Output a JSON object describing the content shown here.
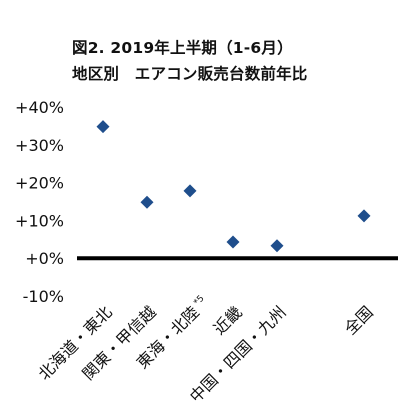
{
  "chart_data": {
    "type": "scatter",
    "title": "図2. 2019年上半期（1-6月）",
    "subtitle": "地区別　エアコン販売台数前年比",
    "categories": [
      "北海道・東北",
      "関東・甲信越",
      "東海・北陸",
      "近畿",
      "中国・四国・九州",
      "全国"
    ],
    "category_notes": [
      "",
      "",
      "*5",
      "",
      "",
      ""
    ],
    "values": [
      34.8,
      14.8,
      17.8,
      4.3,
      3.3,
      11.2
    ],
    "value_unit": "%",
    "y_ticks": [
      "+40%",
      "+30%",
      "+20%",
      "+10%",
      "+0%",
      "-10%"
    ],
    "ylim": [
      -10,
      40
    ],
    "grid": false,
    "legend": "none",
    "marker": "diamond",
    "colors": {
      "marker": "#1f4e8c",
      "zero_line": "#000000",
      "negative_tick": "#e0202a",
      "text": "#111111"
    }
  }
}
